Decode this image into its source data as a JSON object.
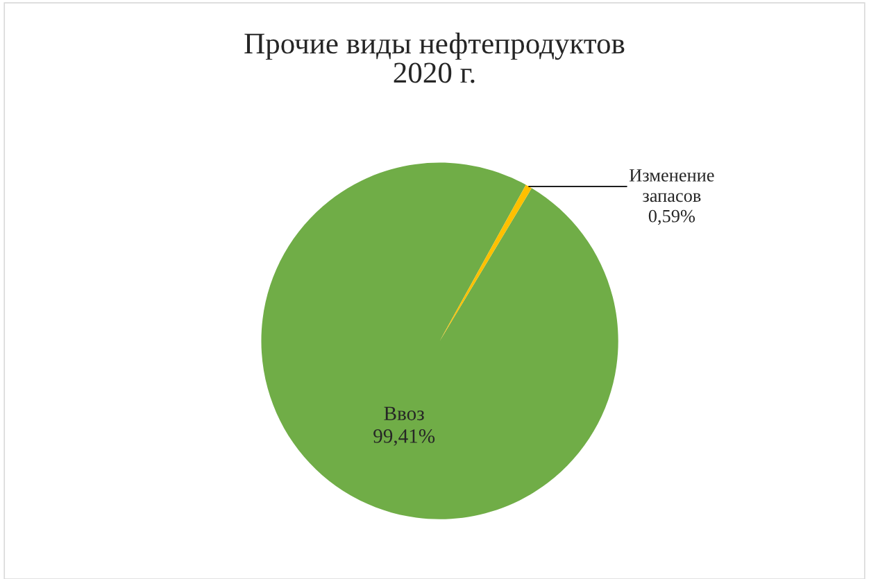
{
  "chart_data": {
    "type": "pie",
    "title": "Прочие виды нефтепродуктов\n2020 г.",
    "categories": [
      "Ввоз",
      "Изменение запасов"
    ],
    "values": [
      99.41,
      0.59
    ],
    "colors": [
      "#70ad47",
      "#ffc000"
    ],
    "value_labels": [
      "99,41%",
      "0,59%"
    ],
    "legend": false
  }
}
